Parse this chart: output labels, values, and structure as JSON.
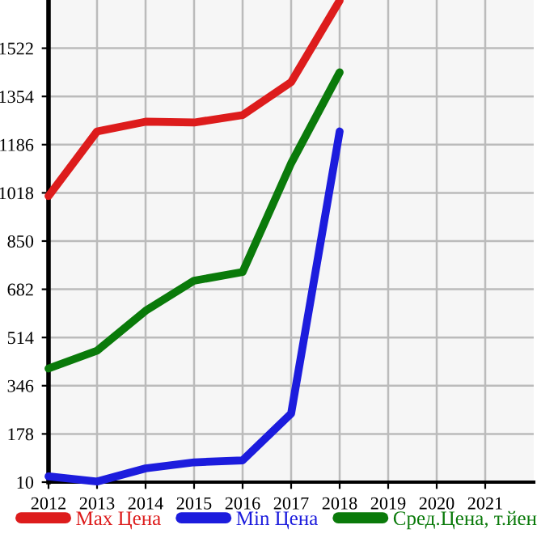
{
  "chart_data": {
    "type": "line",
    "x": [
      2012,
      2013,
      2014,
      2015,
      2016,
      2017,
      2018
    ],
    "series": [
      {
        "name": "Max Цена",
        "color": "#dd1c1c",
        "values": [
          1007,
          1232,
          1266,
          1263,
          1289,
          1404,
          1688
        ]
      },
      {
        "name": "Min Цена",
        "color": "#1c1cdd",
        "values": [
          30,
          12,
          58,
          79,
          86,
          249,
          1232
        ]
      },
      {
        "name": "Сред.Цена, т.йен",
        "color": "#0a7a0a",
        "values": [
          406,
          468,
          607,
          712,
          742,
          1121,
          1438
        ]
      }
    ],
    "xlim": [
      2012,
      2022
    ],
    "xticks": [
      2012,
      2013,
      2014,
      2015,
      2016,
      2017,
      2018,
      2019,
      2020,
      2021
    ],
    "ylim": [
      10,
      1690
    ],
    "yticks": [
      10,
      178,
      346,
      514,
      682,
      850,
      1018,
      1186,
      1354,
      1522
    ],
    "grid": true,
    "legend": "bottom",
    "marker": "none",
    "line_style": "solid"
  }
}
